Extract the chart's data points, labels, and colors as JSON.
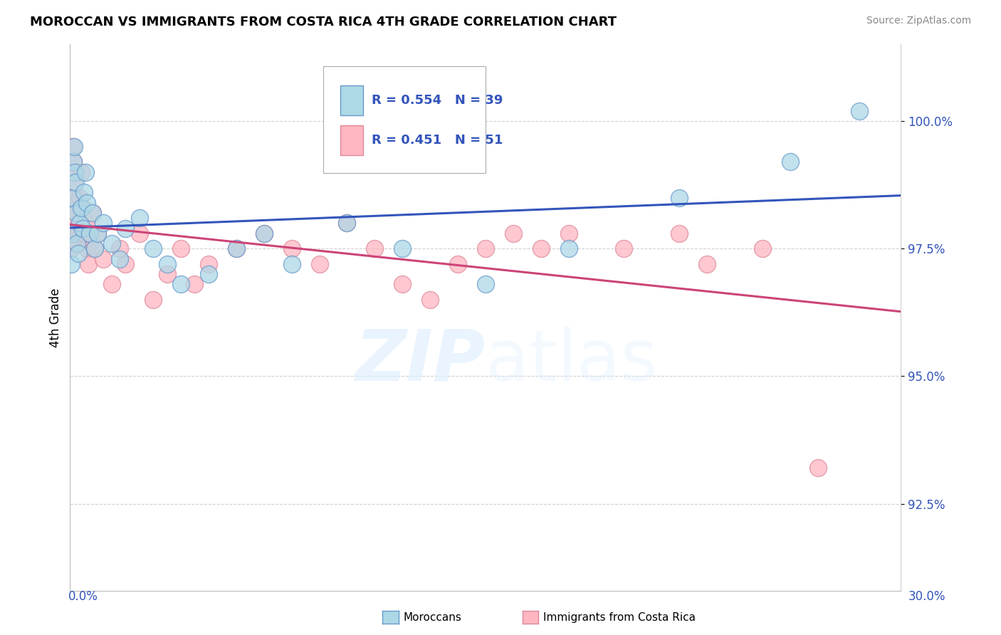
{
  "title": "MOROCCAN VS IMMIGRANTS FROM COSTA RICA 4TH GRADE CORRELATION CHART",
  "source": "Source: ZipAtlas.com",
  "ylabel": "4th Grade",
  "yticks": [
    92.5,
    95.0,
    97.5,
    100.0
  ],
  "ytick_labels": [
    "92.5%",
    "95.0%",
    "97.5%",
    "100.0%"
  ],
  "xmin": 0.0,
  "xmax": 30.0,
  "ymin": 90.8,
  "ymax": 101.5,
  "legend_r_blue": "R = 0.554",
  "legend_n_blue": "N = 39",
  "legend_r_pink": "R = 0.451",
  "legend_n_pink": "N = 51",
  "blue_color": "#add8e6",
  "pink_color": "#ffb6c1",
  "blue_edge_color": "#6699cc",
  "pink_edge_color": "#dd8899",
  "blue_line_color": "#3355bb",
  "pink_line_color": "#cc4477",
  "legend_text_color": "#3355bb",
  "moroccans_x": [
    0.05,
    0.08,
    0.1,
    0.12,
    0.15,
    0.18,
    0.2,
    0.22,
    0.25,
    0.3,
    0.35,
    0.4,
    0.45,
    0.5,
    0.55,
    0.6,
    0.7,
    0.8,
    0.9,
    1.0,
    1.2,
    1.5,
    1.8,
    2.0,
    2.5,
    3.0,
    3.5,
    4.0,
    5.0,
    6.0,
    7.0,
    8.0,
    10.0,
    12.0,
    15.0,
    18.0,
    22.0,
    26.0,
    28.5
  ],
  "moroccans_y": [
    97.2,
    97.8,
    98.5,
    99.2,
    99.5,
    99.0,
    98.8,
    98.2,
    97.6,
    97.4,
    98.0,
    98.3,
    97.9,
    98.6,
    99.0,
    98.4,
    97.8,
    98.2,
    97.5,
    97.8,
    98.0,
    97.6,
    97.3,
    97.9,
    98.1,
    97.5,
    97.2,
    96.8,
    97.0,
    97.5,
    97.8,
    97.2,
    98.0,
    97.5,
    96.8,
    97.5,
    98.5,
    99.2,
    100.2
  ],
  "costarica_x": [
    0.03,
    0.05,
    0.07,
    0.1,
    0.12,
    0.15,
    0.18,
    0.2,
    0.22,
    0.25,
    0.28,
    0.3,
    0.35,
    0.4,
    0.45,
    0.5,
    0.55,
    0.6,
    0.65,
    0.7,
    0.8,
    0.9,
    1.0,
    1.2,
    1.5,
    1.8,
    2.0,
    2.5,
    3.0,
    3.5,
    4.0,
    4.5,
    5.0,
    6.0,
    7.0,
    8.0,
    9.0,
    10.0,
    11.0,
    12.0,
    13.0,
    14.0,
    15.0,
    16.0,
    17.0,
    18.0,
    20.0,
    22.0,
    23.0,
    25.0,
    27.0
  ],
  "costarica_y": [
    97.5,
    98.0,
    97.8,
    99.5,
    99.2,
    98.8,
    99.0,
    98.5,
    97.9,
    98.2,
    97.6,
    97.8,
    98.5,
    99.0,
    98.3,
    97.8,
    98.0,
    97.5,
    97.2,
    97.8,
    98.2,
    97.5,
    97.8,
    97.3,
    96.8,
    97.5,
    97.2,
    97.8,
    96.5,
    97.0,
    97.5,
    96.8,
    97.2,
    97.5,
    97.8,
    97.5,
    97.2,
    98.0,
    97.5,
    96.8,
    96.5,
    97.2,
    97.5,
    97.8,
    97.5,
    97.8,
    97.5,
    97.8,
    97.2,
    97.5,
    93.2
  ]
}
